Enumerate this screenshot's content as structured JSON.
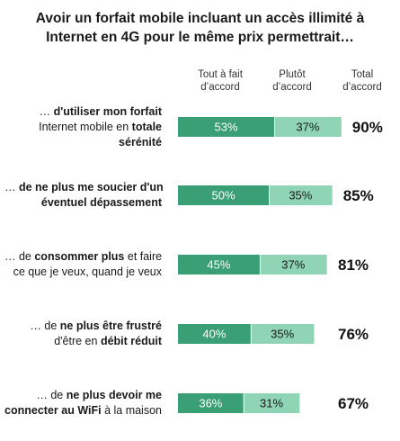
{
  "title_lines": [
    "Avoir un forfait mobile incluant un accès illimité à",
    "Internet en 4G pour le même prix permettrait…"
  ],
  "column_headers": {
    "strong": [
      "Tout à fait",
      "d’accord"
    ],
    "somewhat": [
      "Plutôt",
      "d’accord"
    ],
    "total": [
      "Total",
      "d’accord"
    ]
  },
  "rows": [
    {
      "label_lines": [
        [
          {
            "t": "… ",
            "b": false
          },
          {
            "t": "d'utiliser mon forfait",
            "b": true
          }
        ],
        [
          {
            "t": "Internet mobile en ",
            "b": false
          },
          {
            "t": "totale",
            "b": true
          }
        ],
        [
          {
            "t": "sérénité",
            "b": true
          }
        ]
      ]
    },
    {
      "label_lines": [
        [
          {
            "t": "… ",
            "b": false
          },
          {
            "t": "de ne plus me soucier d'un",
            "b": true
          }
        ],
        [
          {
            "t": "éventuel dépassement",
            "b": true
          }
        ]
      ]
    },
    {
      "label_lines": [
        [
          {
            "t": "… de ",
            "b": false
          },
          {
            "t": "consommer plus",
            "b": true
          },
          {
            "t": " et faire",
            "b": false
          }
        ],
        [
          {
            "t": "ce que je veux, quand je veux",
            "b": false
          }
        ]
      ]
    },
    {
      "label_lines": [
        [
          {
            "t": "… de ",
            "b": false
          },
          {
            "t": "ne plus être frustré",
            "b": true
          }
        ],
        [
          {
            "t": "d'être en ",
            "b": false
          },
          {
            "t": "débit réduit",
            "b": true
          }
        ]
      ]
    },
    {
      "label_lines": [
        [
          {
            "t": "… de ",
            "b": false
          },
          {
            "t": "ne plus devoir me",
            "b": true
          }
        ],
        [
          {
            "t": "connecter au WiFi",
            "b": true
          },
          {
            "t": " à la maison",
            "b": false
          }
        ]
      ]
    }
  ],
  "chart_data": {
    "type": "bar",
    "orientation": "horizontal-stacked",
    "series": [
      {
        "name": "Tout à fait d’accord",
        "values": [
          53,
          50,
          45,
          40,
          36
        ],
        "labels": [
          "53%",
          "50%",
          "45%",
          "40%",
          "36%"
        ]
      },
      {
        "name": "Plutôt d’accord",
        "values": [
          37,
          35,
          37,
          35,
          31
        ],
        "labels": [
          "37%",
          "35%",
          "37%",
          "35%",
          "31%"
        ]
      }
    ],
    "totals": [
      90,
      85,
      81,
      76,
      67
    ],
    "total_labels": [
      "90%",
      "85%",
      "81%",
      "76%",
      "67%"
    ],
    "colors": {
      "strong": "#3a9f74",
      "somewhat": "#8fd4b4",
      "strong_text": "#ffffff",
      "somewhat_text": "#1a1a1a"
    },
    "grid": false
  }
}
